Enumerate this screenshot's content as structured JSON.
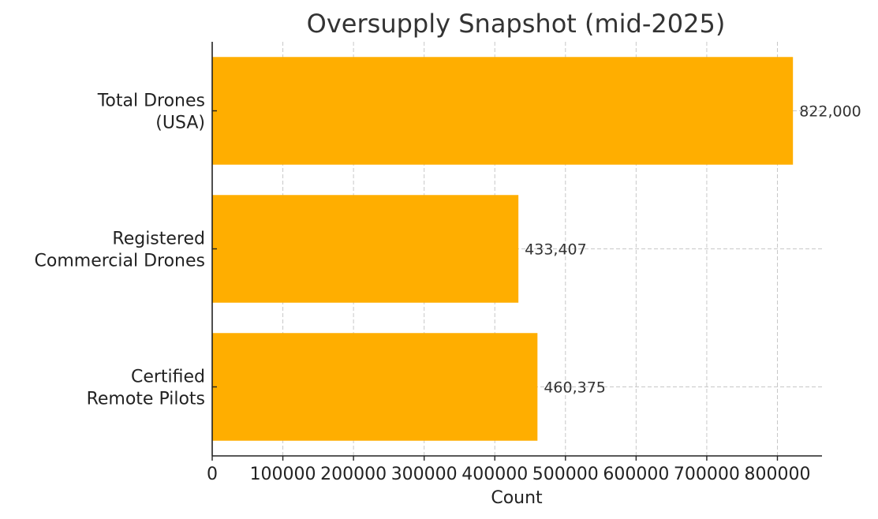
{
  "chart_data": {
    "type": "bar",
    "orientation": "horizontal",
    "title": "Oversupply Snapshot (mid-2025)",
    "xlabel": "Count",
    "ylabel": "",
    "categories": [
      [
        "Total Drones",
        "(USA)"
      ],
      [
        "Registered",
        "Commercial Drones"
      ],
      [
        "Certified",
        "Remote Pilots"
      ]
    ],
    "values": [
      822000,
      433407,
      460375
    ],
    "data_labels": [
      "822,000",
      "433,407",
      "460,375"
    ],
    "xlim": [
      0,
      863100
    ],
    "xticks": [
      0,
      100000,
      200000,
      300000,
      400000,
      500000,
      600000,
      700000,
      800000
    ],
    "xtick_labels": [
      "0",
      "100000",
      "200000",
      "300000",
      "400000",
      "500000",
      "600000",
      "700000",
      "800000"
    ],
    "grid": true,
    "bar_color": "#FFAE00"
  }
}
